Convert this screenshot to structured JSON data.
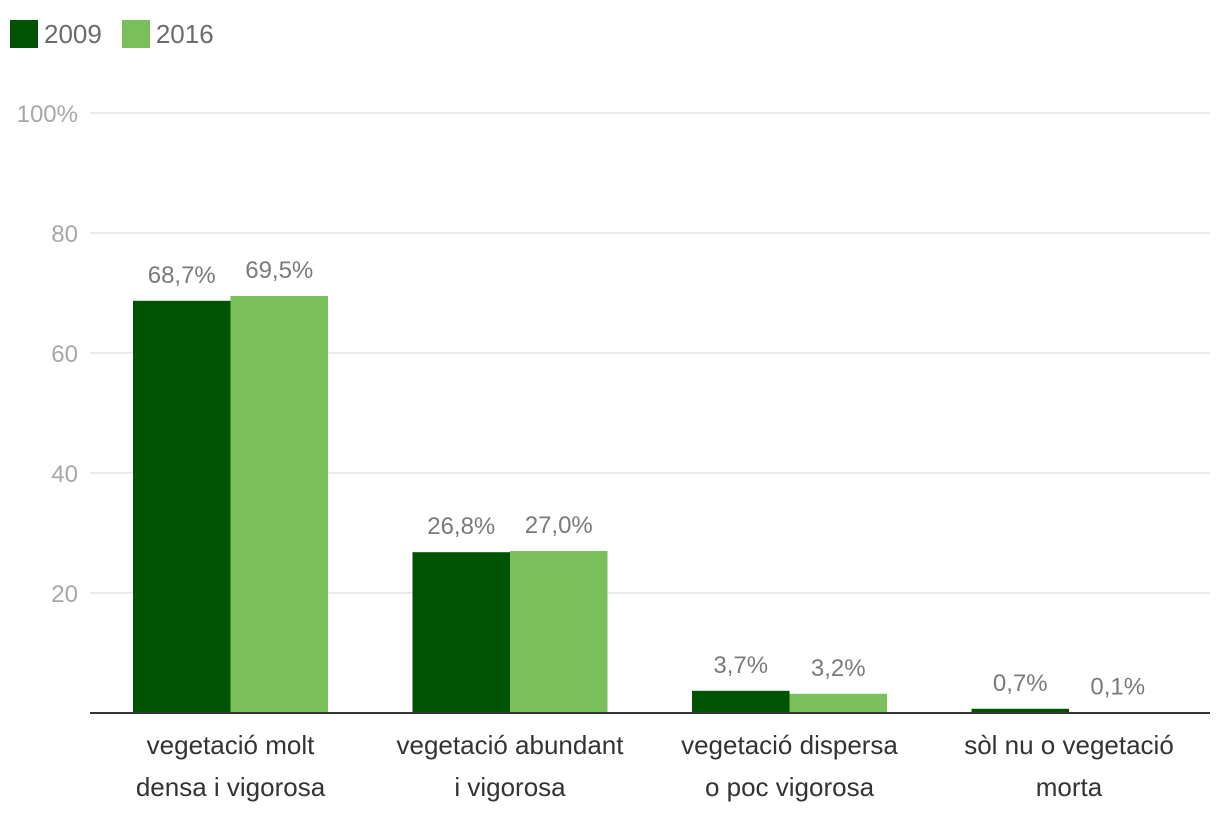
{
  "chart_data": {
    "type": "bar",
    "categories": [
      [
        "vegetació molt",
        "densa i vigorosa"
      ],
      [
        "vegetació abundant",
        "i vigorosa"
      ],
      [
        "vegetació dispersa",
        "o poc vigorosa"
      ],
      [
        "sòl nu o vegetació",
        "morta"
      ]
    ],
    "series": [
      {
        "name": "2009",
        "color": "#005300",
        "values": [
          68.7,
          26.8,
          3.7,
          0.7
        ],
        "labels": [
          "68,7%",
          "26,8%",
          "3,7%",
          "0,7%"
        ]
      },
      {
        "name": "2016",
        "color": "#7ac05a",
        "values": [
          69.5,
          27.0,
          3.2,
          0.1
        ],
        "labels": [
          "69,5%",
          "27,0%",
          "3,2%",
          "0,1%"
        ]
      }
    ],
    "ylim": [
      0,
      100
    ],
    "yticks": [
      20,
      40,
      60,
      80,
      100
    ],
    "ytick_labels": [
      "20",
      "40",
      "60",
      "80",
      "100%"
    ],
    "grid": true,
    "legend_position": "top-left",
    "title": "",
    "xlabel": "",
    "ylabel": ""
  }
}
